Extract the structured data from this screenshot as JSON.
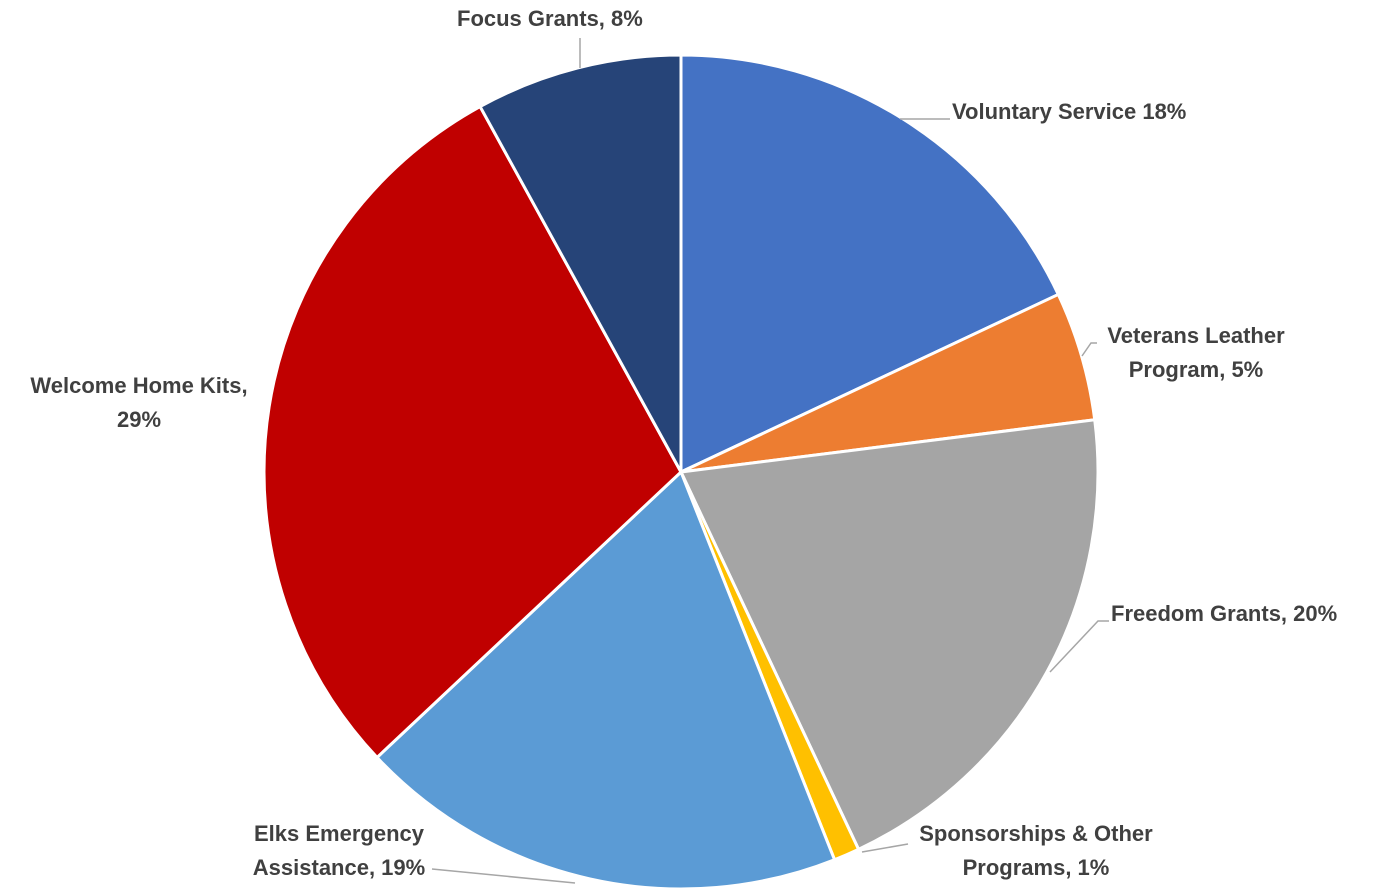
{
  "chart_data": {
    "type": "pie",
    "title": "",
    "start_angle_deg": 0,
    "direction": "clockwise",
    "legend": "none",
    "slices": [
      {
        "name": "Voluntary Service",
        "value": 18,
        "label_lines": [
          "Voluntary Service 18%"
        ],
        "color": "#4472C4"
      },
      {
        "name": "Veterans Leather Program",
        "value": 5,
        "label_lines": [
          "Veterans Leather",
          "Program,  5%"
        ],
        "color": "#ED7D31"
      },
      {
        "name": "Freedom Grants",
        "value": 20,
        "label_lines": [
          "Freedom Grants, 20%"
        ],
        "color": "#A5A5A5"
      },
      {
        "name": "Sponsorships & Other Programs",
        "value": 1,
        "label_lines": [
          "Sponsorships & Other",
          "Programs, 1%"
        ],
        "color": "#FFC000"
      },
      {
        "name": "Elks Emergency Assistance",
        "value": 19,
        "label_lines": [
          "Elks Emergency",
          "Assistance, 19%"
        ],
        "color": "#5B9BD5"
      },
      {
        "name": "Welcome Home Kits",
        "value": 29,
        "label_lines": [
          "Welcome Home Kits,",
          "29%"
        ],
        "color": "#C00000"
      },
      {
        "name": "Focus Grants",
        "value": 8,
        "label_lines": [
          "Focus Grants, 8%"
        ],
        "color": "#264478"
      }
    ]
  }
}
